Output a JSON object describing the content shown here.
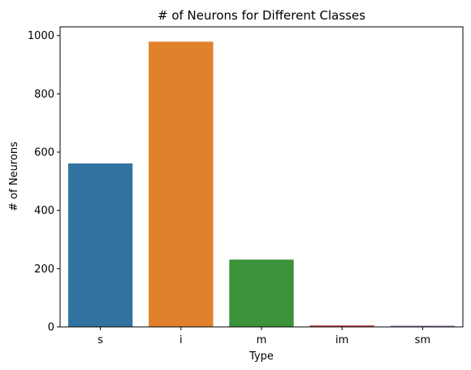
{
  "chart_data": {
    "type": "bar",
    "title": "# of Neurons for Different Classes",
    "xlabel": "Type",
    "ylabel": "# of Neurons",
    "categories": [
      "s",
      "i",
      "m",
      "im",
      "sm"
    ],
    "values": [
      561,
      979,
      231,
      5,
      4
    ],
    "colors": [
      "#3274a1",
      "#e1812c",
      "#3a923a",
      "#c03d3e",
      "#9372b2"
    ],
    "ylim": [
      0,
      1030
    ],
    "yticks": [
      0,
      200,
      400,
      600,
      800,
      1000
    ],
    "grid": false,
    "legend": "none"
  }
}
